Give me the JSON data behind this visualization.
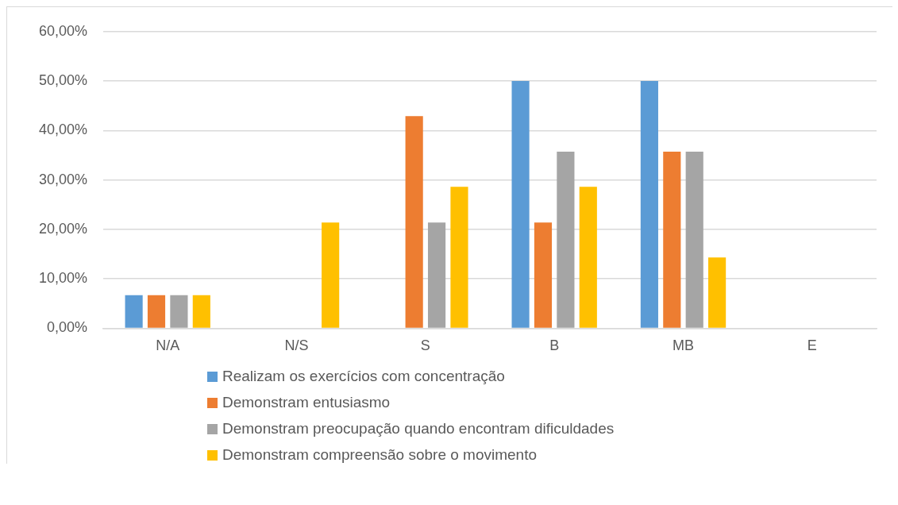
{
  "chart_data": {
    "type": "bar",
    "categories": [
      "N/A",
      "N/S",
      "S",
      "B",
      "MB",
      "E"
    ],
    "series": [
      {
        "name": "Realizam os exercícios com concentração",
        "color": "#5b9bd5",
        "values": [
          6.7,
          0,
          0,
          50,
          50,
          0
        ]
      },
      {
        "name": "Demonstram entusiasmo",
        "color": "#ed7d31",
        "values": [
          6.7,
          0,
          42.9,
          21.4,
          35.7,
          0
        ]
      },
      {
        "name": "Demonstram preocupação quando encontram dificuldades",
        "color": "#a5a5a5",
        "values": [
          6.7,
          0,
          21.4,
          35.7,
          35.7,
          0
        ]
      },
      {
        "name": "Demonstram compreensão sobre o movimento",
        "color": "#ffc000",
        "values": [
          6.7,
          21.4,
          28.6,
          28.6,
          14.3,
          0
        ]
      }
    ],
    "ylim": [
      0,
      60
    ],
    "yticks": [
      {
        "value": 0,
        "label": "0,00%"
      },
      {
        "value": 10,
        "label": "10,00%"
      },
      {
        "value": 20,
        "label": "20,00%"
      },
      {
        "value": 30,
        "label": "30,00%"
      },
      {
        "value": 40,
        "label": "40,00%"
      },
      {
        "value": 50,
        "label": "50,00%"
      },
      {
        "value": 60,
        "label": "60,00%"
      }
    ],
    "grid": "y",
    "legend": "bottom"
  }
}
